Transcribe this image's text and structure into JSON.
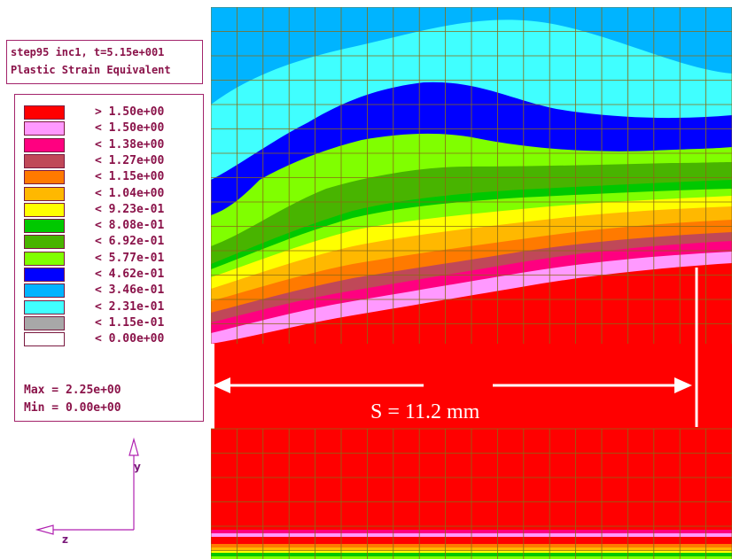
{
  "header": {
    "line1": "step95 inc1, t=5.15e+001",
    "line2": "Plastic Strain Equivalent"
  },
  "legend": {
    "entries": [
      {
        "label": "> 1.50e+00",
        "color": "#ff0000"
      },
      {
        "label": "< 1.50e+00",
        "color": "#ff99ff"
      },
      {
        "label": "< 1.38e+00",
        "color": "#ff0080"
      },
      {
        "label": "< 1.27e+00",
        "color": "#c04858"
      },
      {
        "label": "< 1.15e+00",
        "color": "#ff7a00"
      },
      {
        "label": "< 1.04e+00",
        "color": "#ffb800"
      },
      {
        "label": "< 9.23e-01",
        "color": "#ffff00"
      },
      {
        "label": "< 8.08e-01",
        "color": "#00c800"
      },
      {
        "label": "< 6.92e-01",
        "color": "#48b400"
      },
      {
        "label": "< 5.77e-01",
        "color": "#80ff00"
      },
      {
        "label": "< 4.62e-01",
        "color": "#0000ff"
      },
      {
        "label": "< 3.46e-01",
        "color": "#00b4ff"
      },
      {
        "label": "< 2.31e-01",
        "color": "#40ffff"
      },
      {
        "label": "< 1.15e-01",
        "color": "#a8a8a8"
      },
      {
        "label": "< 0.00e+00",
        "color": "#ffffff"
      }
    ],
    "max_label": "Max = 2.25e+00",
    "min_label": "Min = 0.00e+00"
  },
  "annotation": {
    "dimension_label": "S = 11.2 mm"
  },
  "axes": {
    "y_label": "y",
    "z_label": "z"
  },
  "colors": {
    "border": "#a3246b",
    "text": "#8a1249",
    "grid": "#8a6a14"
  }
}
